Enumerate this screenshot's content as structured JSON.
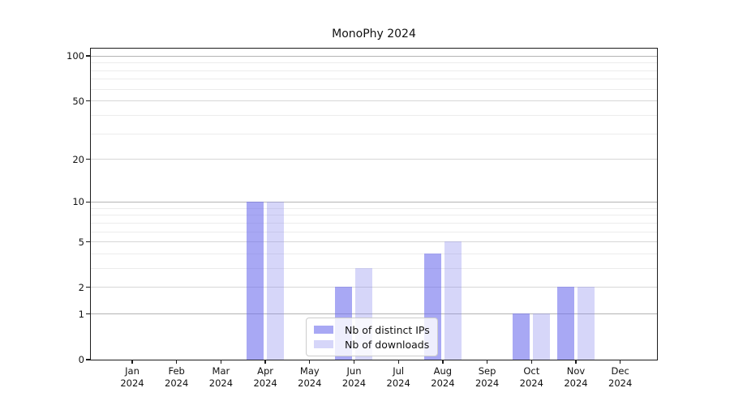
{
  "chart_data": {
    "type": "bar",
    "title": "MonoPhy 2024",
    "year": "2024",
    "categories": [
      "Jan",
      "Feb",
      "Mar",
      "Apr",
      "May",
      "Jun",
      "Jul",
      "Aug",
      "Sep",
      "Oct",
      "Nov",
      "Dec"
    ],
    "series": [
      {
        "name": "Nb of distinct IPs",
        "values": [
          0,
          0,
          0,
          10,
          0,
          2,
          0,
          4,
          0,
          1,
          2,
          0
        ]
      },
      {
        "name": "Nb of downloads",
        "values": [
          0,
          0,
          0,
          10,
          0,
          3,
          0,
          5,
          0,
          1,
          2,
          0
        ]
      }
    ],
    "y_ticks": [
      0,
      1,
      2,
      5,
      10,
      20,
      50,
      100
    ],
    "y_scale": "log10(value+1)",
    "ylim": [
      0,
      112
    ],
    "grid": true,
    "grid_decade_values": [
      1,
      10,
      100
    ],
    "grid_major_values": [
      2,
      5,
      20,
      50
    ],
    "grid_minor_values": [
      3,
      4,
      6,
      7,
      8,
      9,
      30,
      40,
      60,
      70,
      80,
      90
    ],
    "legend_position": "lower-center-inside",
    "colors": {
      "distinct_ips_bar": "rgba(110,110,237,0.60)",
      "downloads_bar": "rgba(138,138,238,0.35)",
      "axis_text": "#111111",
      "spine": "#1c1c1c",
      "grid_decade": "#b4b4b4",
      "grid_major": "#d7d7d7",
      "grid_minor": "#ececec",
      "legend_background": "rgba(255,255,255,0.8)",
      "legend_border": "#cccccc"
    }
  }
}
